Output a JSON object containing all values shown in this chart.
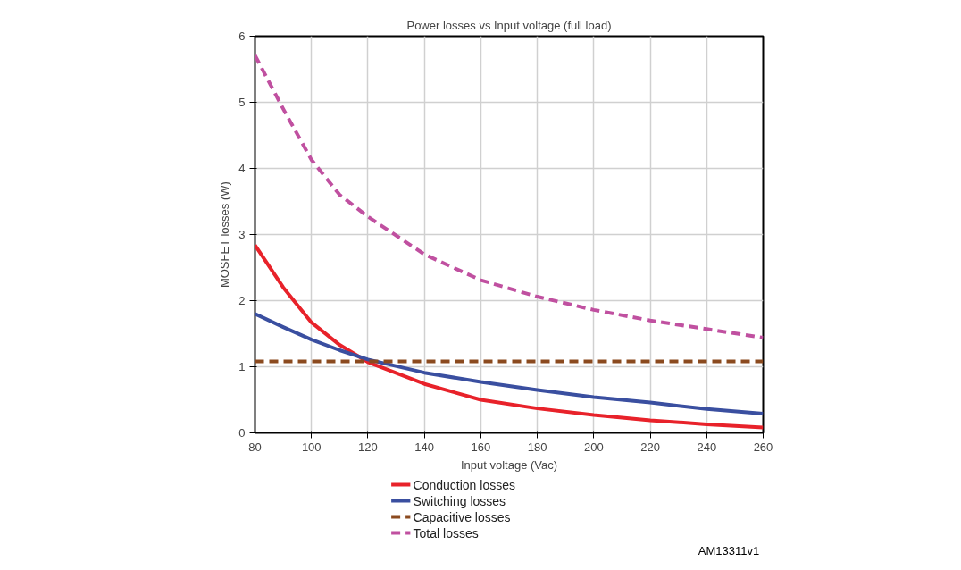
{
  "chart_data": {
    "type": "line",
    "title": "Power losses vs Input voltage (full load)",
    "xlabel": "Input voltage (Vac)",
    "ylabel": "MOSFET losses (W)",
    "xlim": [
      80,
      260
    ],
    "xticks": [
      80,
      100,
      120,
      140,
      160,
      180,
      200,
      220,
      240,
      260
    ],
    "ylim": [
      0,
      6
    ],
    "yticks": [
      0,
      1,
      2,
      3,
      4,
      5,
      6
    ],
    "grid": true,
    "legend": "bottom left",
    "x": [
      80,
      90,
      100,
      110,
      120,
      140,
      160,
      180,
      200,
      220,
      240,
      260
    ],
    "series": [
      {
        "name": "Conduction losses",
        "color": "#e8222a",
        "line_style": "solid",
        "values": [
          2.84,
          2.2,
          1.67,
          1.33,
          1.07,
          0.74,
          0.5,
          0.37,
          0.27,
          0.19,
          0.13,
          0.08
        ]
      },
      {
        "name": "Switching losses",
        "color": "#3a4fa0",
        "line_style": "solid",
        "values": [
          1.8,
          1.6,
          1.41,
          1.25,
          1.11,
          0.91,
          0.77,
          0.65,
          0.54,
          0.46,
          0.36,
          0.29
        ]
      },
      {
        "name": "Capacitive losses",
        "color": "#8b4a1f",
        "line_style": "dashed",
        "values": [
          1.08,
          1.08,
          1.08,
          1.08,
          1.08,
          1.08,
          1.08,
          1.08,
          1.08,
          1.08,
          1.08,
          1.08
        ]
      },
      {
        "name": "Total losses",
        "color": "#c050a0",
        "line_style": "dashed",
        "values": [
          5.71,
          4.9,
          4.13,
          3.6,
          3.27,
          2.7,
          2.31,
          2.06,
          1.86,
          1.7,
          1.57,
          1.44
        ]
      }
    ],
    "annotations": [
      "AM13311v1"
    ]
  }
}
